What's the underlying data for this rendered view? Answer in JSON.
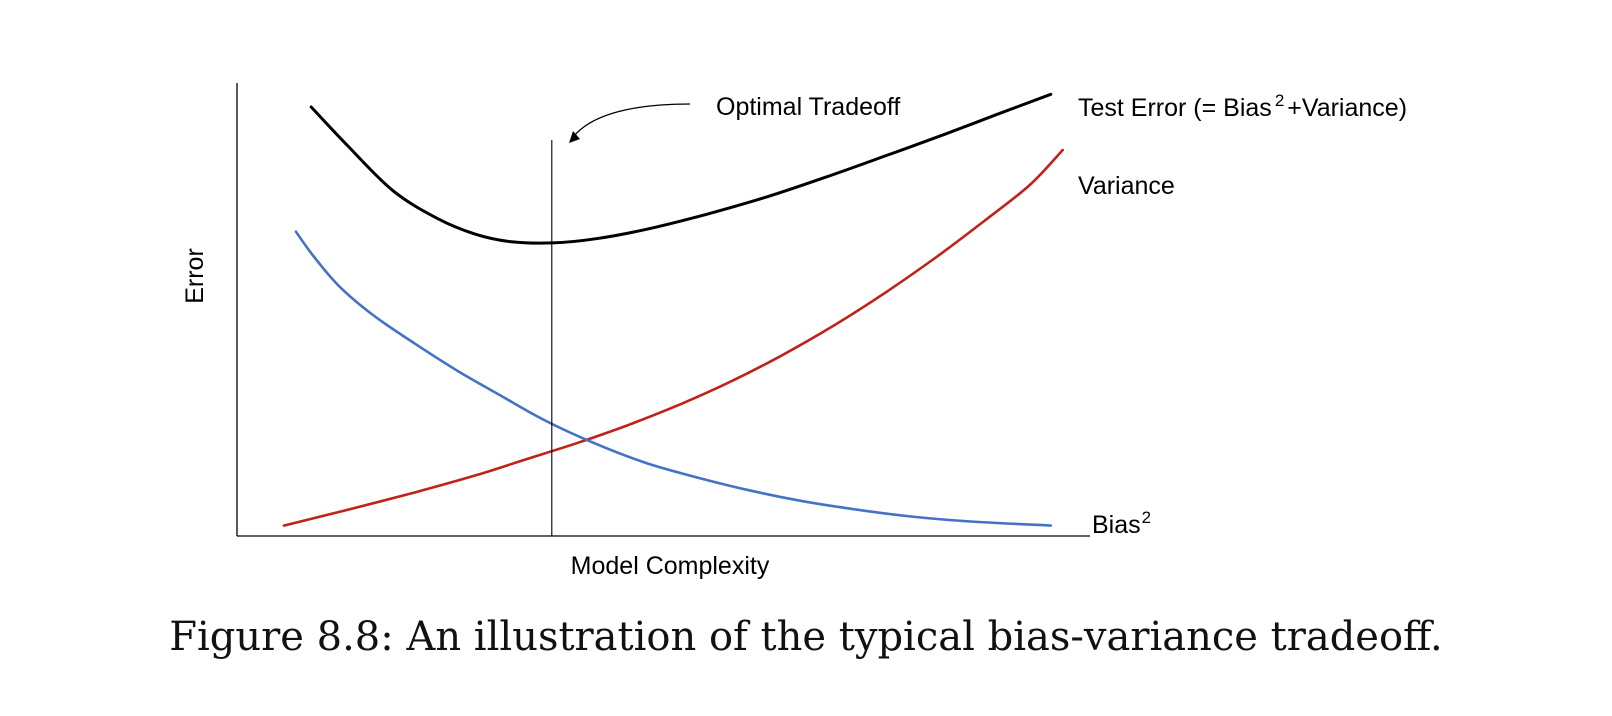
{
  "chart_data": {
    "type": "line",
    "xlabel": "Model Complexity",
    "ylabel": "Error",
    "x_range": [
      0,
      1
    ],
    "y_range": [
      0,
      1
    ],
    "series": [
      {
        "name": "Test Error (= Bias",
        "name_sup": "2",
        "name_suffix": "+Variance)",
        "color": "#000000",
        "points": [
          [
            0.087,
            0.947
          ],
          [
            0.13,
            0.861
          ],
          [
            0.183,
            0.762
          ],
          [
            0.236,
            0.7
          ],
          [
            0.28,
            0.666
          ],
          [
            0.32,
            0.65
          ],
          [
            0.37,
            0.647
          ],
          [
            0.42,
            0.656
          ],
          [
            0.48,
            0.677
          ],
          [
            0.55,
            0.71
          ],
          [
            0.62,
            0.748
          ],
          [
            0.69,
            0.792
          ],
          [
            0.76,
            0.839
          ],
          [
            0.83,
            0.887
          ],
          [
            0.89,
            0.93
          ],
          [
            0.954,
            0.975
          ]
        ]
      },
      {
        "name": "Variance",
        "color": "#c0221a",
        "points": [
          [
            0.055,
            0.023
          ],
          [
            0.13,
            0.058
          ],
          [
            0.21,
            0.097
          ],
          [
            0.28,
            0.134
          ],
          [
            0.34,
            0.17
          ],
          [
            0.4,
            0.206
          ],
          [
            0.46,
            0.246
          ],
          [
            0.52,
            0.291
          ],
          [
            0.58,
            0.342
          ],
          [
            0.64,
            0.4
          ],
          [
            0.7,
            0.465
          ],
          [
            0.76,
            0.537
          ],
          [
            0.82,
            0.616
          ],
          [
            0.88,
            0.701
          ],
          [
            0.93,
            0.776
          ],
          [
            0.968,
            0.852
          ]
        ]
      },
      {
        "name": "Bias",
        "name_sup": "2",
        "color": "#4472c4",
        "points": [
          [
            0.069,
            0.672
          ],
          [
            0.09,
            0.617
          ],
          [
            0.12,
            0.551
          ],
          [
            0.16,
            0.487
          ],
          [
            0.21,
            0.423
          ],
          [
            0.26,
            0.363
          ],
          [
            0.31,
            0.309
          ],
          [
            0.36,
            0.256
          ],
          [
            0.42,
            0.204
          ],
          [
            0.48,
            0.161
          ],
          [
            0.54,
            0.129
          ],
          [
            0.6,
            0.101
          ],
          [
            0.66,
            0.078
          ],
          [
            0.72,
            0.06
          ],
          [
            0.79,
            0.043
          ],
          [
            0.86,
            0.032
          ],
          [
            0.954,
            0.023
          ]
        ]
      }
    ],
    "vertical_marker": {
      "x": 0.369,
      "label": "Optimal Tradeoff"
    },
    "grid": false,
    "legend": "inline labels at line ends"
  },
  "caption": "Figure 8.8: An illustration of the typical bias-variance tradeoff."
}
